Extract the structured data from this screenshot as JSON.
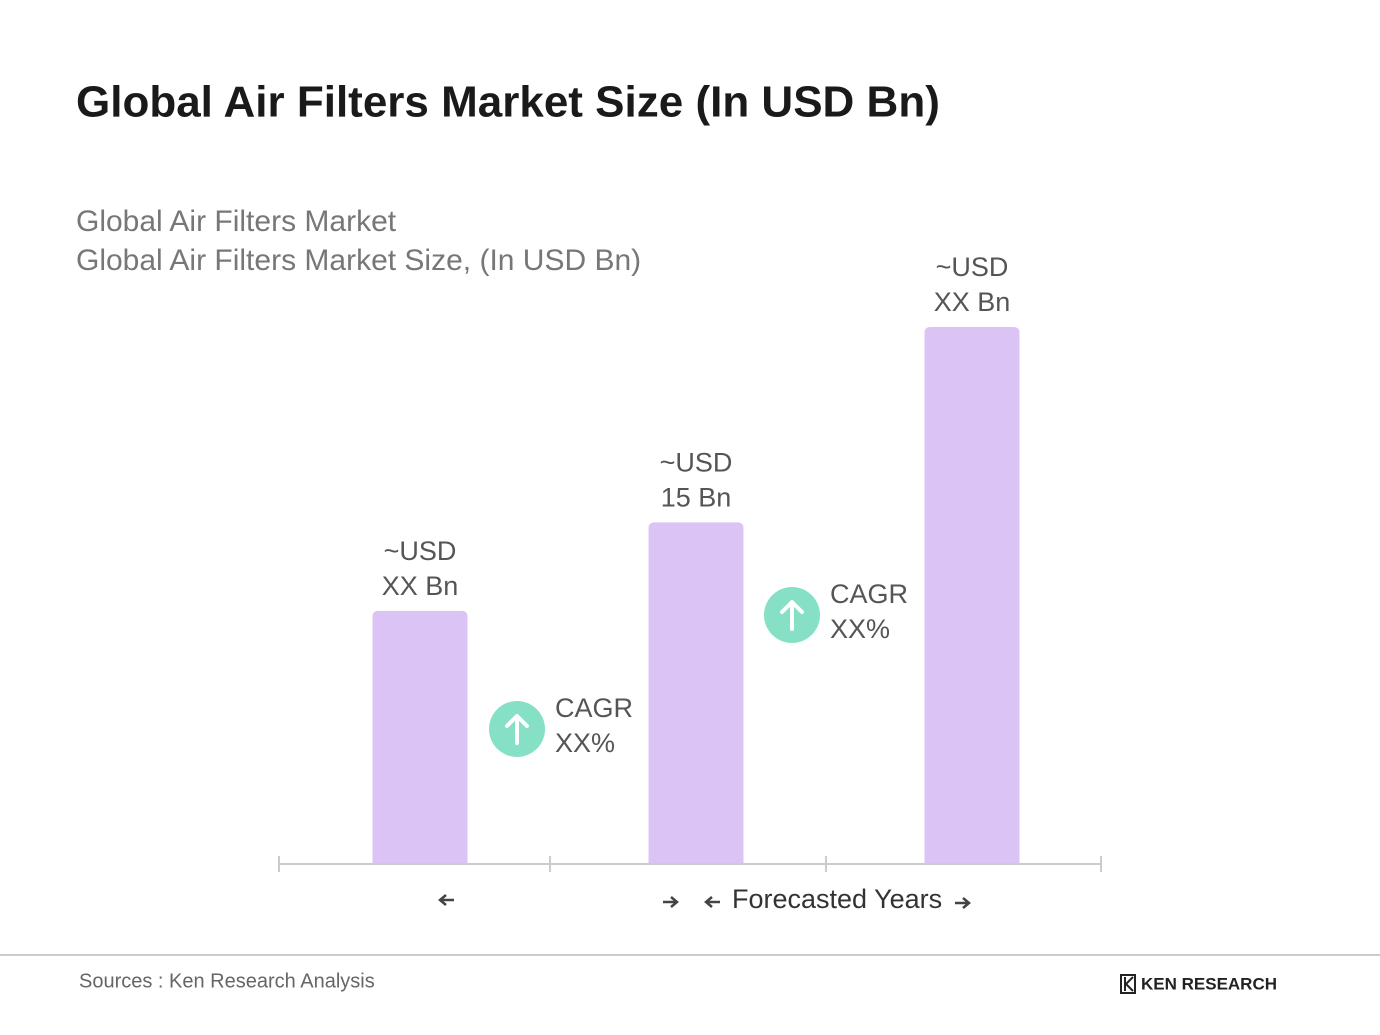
{
  "chart_data": {
    "type": "bar",
    "title": "Global Air Filters Market Size (In USD Bn)",
    "subtitle": [
      "Global Air Filters Market",
      "Global Air Filters Market Size, (In USD Bn)"
    ],
    "categories": [
      null,
      null,
      null
    ],
    "values": [
      11.1,
      15,
      23.6
    ],
    "value_labels": [
      "~USD\nXX Bn",
      "~USD\n15 Bn",
      "~USD\nXX Bn"
    ],
    "color": "#dcc3f5",
    "annotations": [
      {
        "title": "CAGR",
        "value": "XX%"
      },
      {
        "title": "CAGR",
        "value": "XX%"
      }
    ],
    "forecast_label": "Forecasted Years",
    "source": "Sources : Ken Research Analysis",
    "brand": "KEN RESEARCH"
  }
}
